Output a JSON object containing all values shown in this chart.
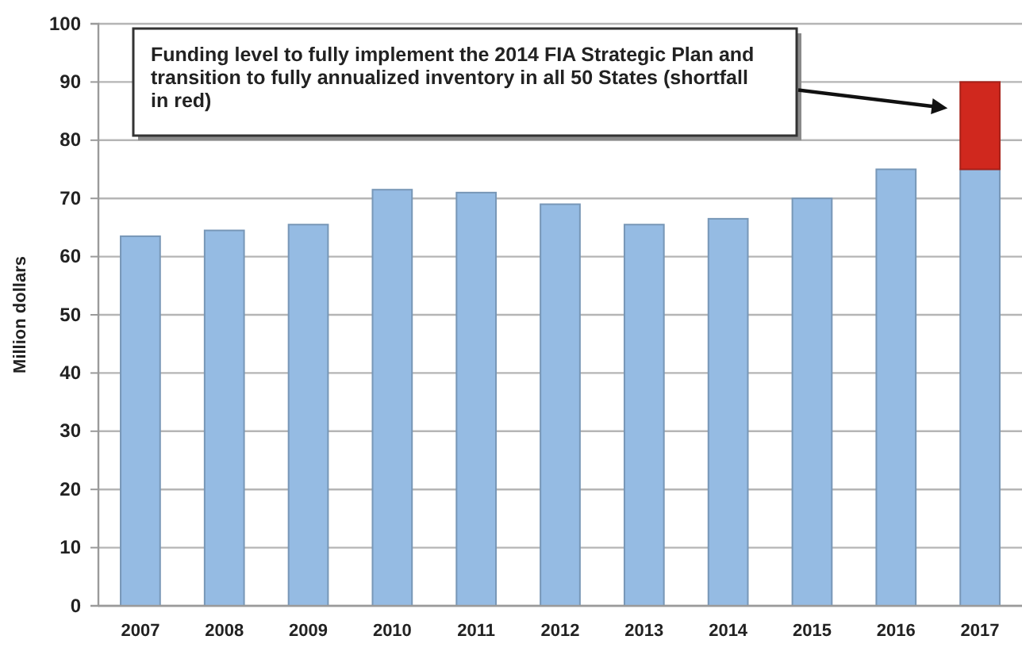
{
  "chart_data": {
    "type": "bar",
    "stacked": true,
    "categories": [
      "2007",
      "2008",
      "2009",
      "2010",
      "2011",
      "2012",
      "2013",
      "2014",
      "2015",
      "2016",
      "2017"
    ],
    "series": [
      {
        "color": "#95bbe3",
        "values": [
          63.5,
          64.5,
          65.5,
          71.5,
          71,
          69,
          65.5,
          66.5,
          70,
          75,
          75
        ]
      },
      {
        "color": "#d0281e",
        "values": [
          null,
          null,
          null,
          null,
          null,
          null,
          null,
          null,
          null,
          null,
          15
        ]
      }
    ],
    "ylabel": "Million dollars",
    "ylim": [
      0,
      100
    ],
    "yticks": [
      0,
      10,
      20,
      30,
      40,
      50,
      60,
      70,
      80,
      90,
      100
    ],
    "grid": "y",
    "annotations": [
      "Funding level to fully implement the 2014 FIA Strategic Plan and transition to fully annualized inventory in all 50 States (shortfall in red)"
    ]
  }
}
